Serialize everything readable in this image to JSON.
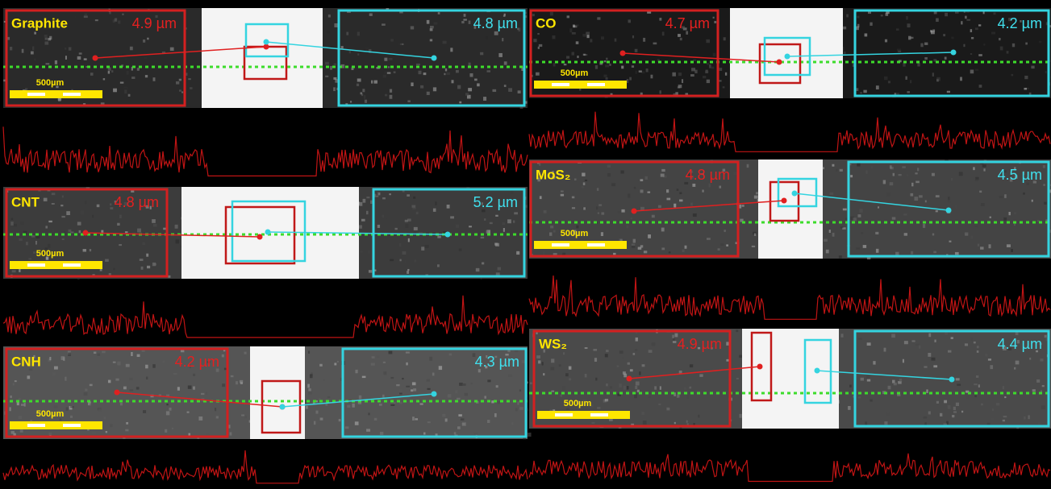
{
  "panels": [
    {
      "label": "Graphite",
      "left_thickness": "4.9 µm",
      "right_thickness": "4.8 µm",
      "scale_bar": "500µm"
    },
    {
      "label": "CNT",
      "left_thickness": "4.8 µm",
      "right_thickness": "5.2 µm",
      "scale_bar": "500µm"
    },
    {
      "label": "CNH",
      "left_thickness": "4.2 µm",
      "right_thickness": "4.3 µm",
      "scale_bar": "500µm"
    },
    {
      "label": "CO",
      "left_thickness": "4.7 µm",
      "right_thickness": "4.2 µm",
      "scale_bar": "500µm"
    },
    {
      "label": "MoS₂",
      "left_thickness": "4.8 µm",
      "right_thickness": "4.5 µm",
      "scale_bar": "500µm"
    },
    {
      "label": "WS₂",
      "left_thickness": "4.9 µm",
      "right_thickness": "4.4 µm",
      "scale_bar": "500µm"
    }
  ]
}
